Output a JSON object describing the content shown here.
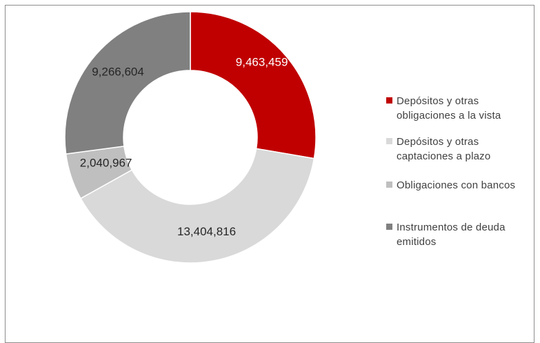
{
  "chart_data": {
    "type": "pie",
    "title": "",
    "donut": true,
    "slices": [
      {
        "label": "Depósitos y otras obligaciones a la vista",
        "legend_lines": [
          "Depósitos y otras",
          "obligaciones a la vista"
        ],
        "value": 9463459,
        "value_label": "9,463,459",
        "color": "#c00000",
        "label_color": "#ffffff"
      },
      {
        "label": "Depósitos y otras captaciones a plazo",
        "legend_lines": [
          "Depósitos y otras",
          "captaciones a plazo"
        ],
        "value": 13404816,
        "value_label": "13,404,816",
        "color": "#d9d9d9",
        "label_color": "#262626"
      },
      {
        "label": "Obligaciones con bancos",
        "legend_lines": [
          "Obligaciones con bancos"
        ],
        "value": 2040967,
        "value_label": "2,040,967",
        "color": "#bfbfbf",
        "label_color": "#262626"
      },
      {
        "label": "Instrumentos de deuda emitidos",
        "legend_lines": [
          "Instrumentos de deuda",
          "emitidos"
        ],
        "value": 9266604,
        "value_label": "9,266,604",
        "color": "#808080",
        "label_color": "#262626"
      }
    ],
    "legend_position": "right"
  }
}
